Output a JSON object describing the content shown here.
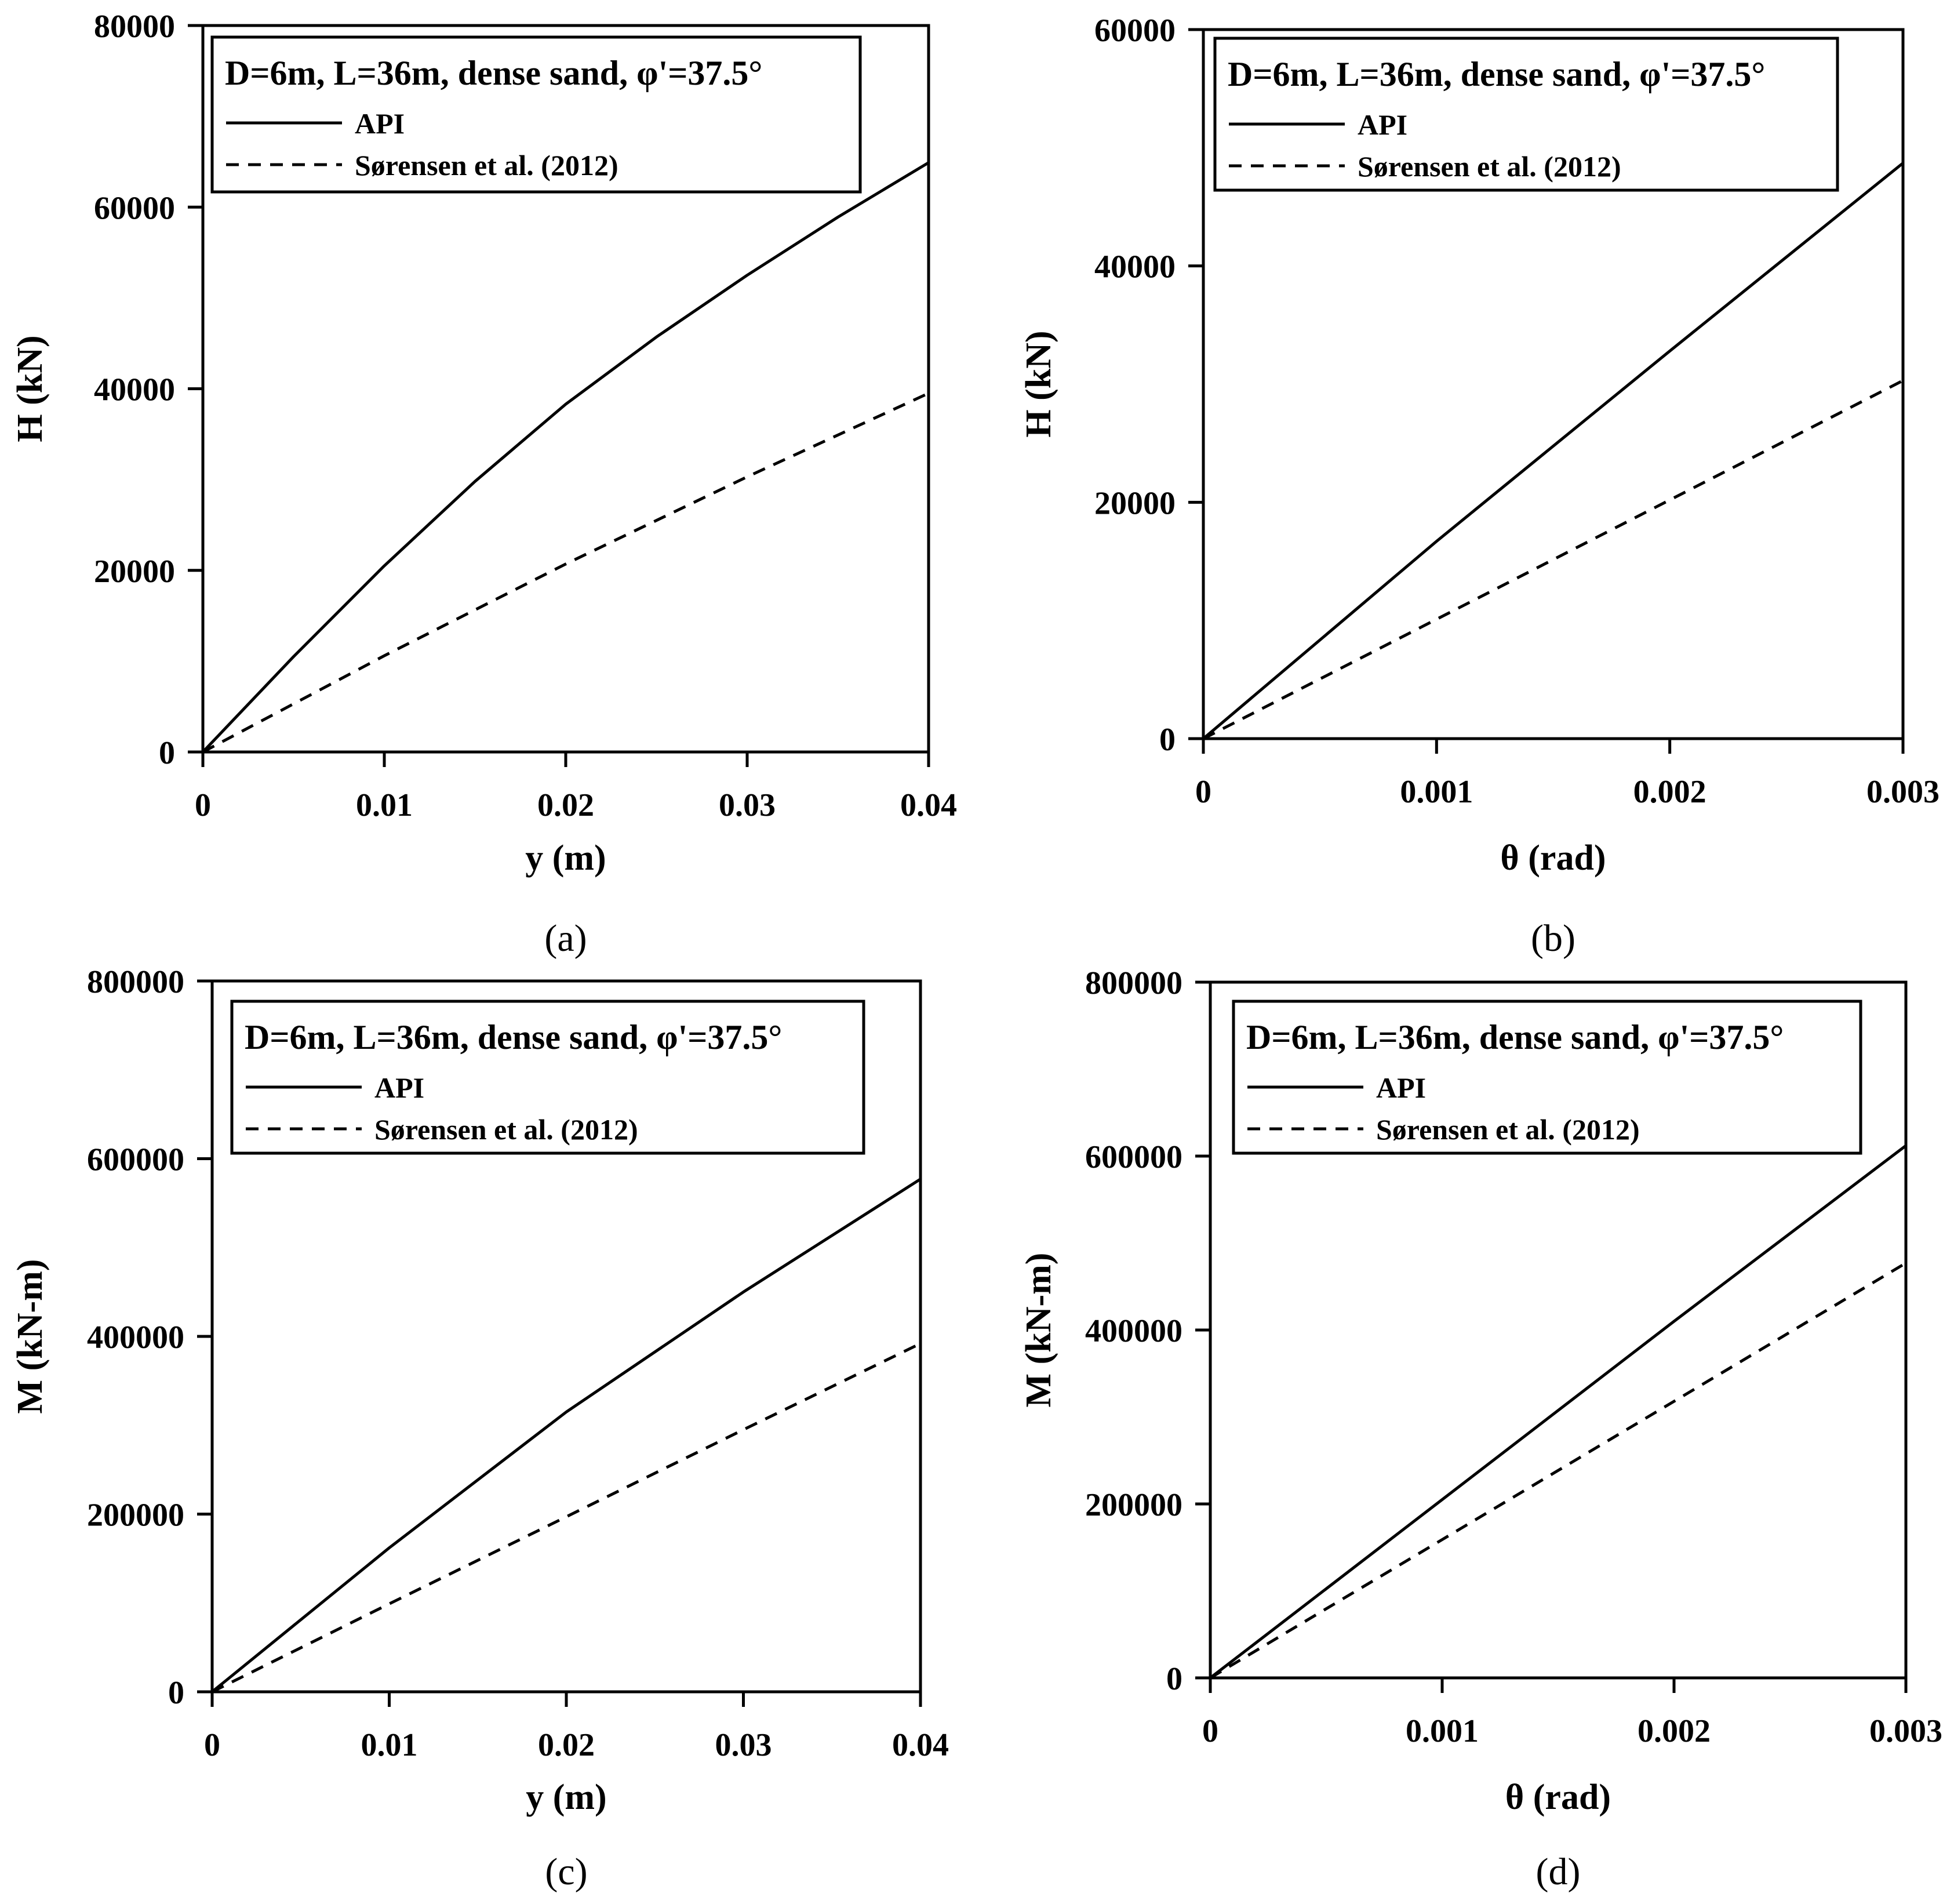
{
  "figure": {
    "panels": [
      "(a)",
      "(b)",
      "(c)",
      "(d)"
    ]
  },
  "chart_data": [
    {
      "id": "a",
      "type": "line",
      "panel_label": "(a)",
      "title": "D=6m, L=36m, dense sand, φ'=37.5°",
      "xlabel": "y (m)",
      "ylabel": "H (kN)",
      "xlim": [
        0,
        0.04
      ],
      "ylim": [
        0,
        80000
      ],
      "xticks": [
        0,
        0.01,
        0.02,
        0.03,
        0.04
      ],
      "xtick_labels": [
        "0",
        "0.01",
        "0.02",
        "0.03",
        "0.04"
      ],
      "yticks": [
        0,
        20000,
        40000,
        60000,
        80000
      ],
      "ytick_labels": [
        "0",
        "20000",
        "40000",
        "60000",
        "80000"
      ],
      "grid": false,
      "legend_position": "top-left",
      "series": [
        {
          "name": "API",
          "style": "solid",
          "x": [
            0,
            0.005,
            0.01,
            0.015,
            0.02,
            0.025,
            0.03,
            0.035,
            0.04
          ],
          "values": [
            0,
            10500,
            20500,
            29800,
            38300,
            45700,
            52500,
            58900,
            64900
          ]
        },
        {
          "name": "Sørensen et al. (2012)",
          "style": "dashed",
          "x": [
            0,
            0.01,
            0.02,
            0.03,
            0.04
          ],
          "values": [
            0,
            10600,
            20700,
            30300,
            39500
          ]
        }
      ]
    },
    {
      "id": "b",
      "type": "line",
      "panel_label": "(b)",
      "title": "D=6m, L=36m, dense sand, φ'=37.5°",
      "xlabel": "θ (rad)",
      "ylabel": "H (kN)",
      "xlim": [
        0,
        0.003
      ],
      "ylim": [
        0,
        60000
      ],
      "xticks": [
        0,
        0.001,
        0.002,
        0.003
      ],
      "xtick_labels": [
        "0",
        "0.001",
        "0.002",
        "0.003"
      ],
      "yticks": [
        0,
        20000,
        40000,
        60000
      ],
      "ytick_labels": [
        "0",
        "20000",
        "40000",
        "60000"
      ],
      "grid": false,
      "legend_position": "top-left",
      "series": [
        {
          "name": "API",
          "style": "solid",
          "x": [
            0,
            0.001,
            0.002,
            0.003
          ],
          "values": [
            0,
            16700,
            32800,
            48700
          ]
        },
        {
          "name": "Sørensen et al. (2012)",
          "style": "dashed",
          "x": [
            0,
            0.001,
            0.002,
            0.003
          ],
          "values": [
            0,
            10100,
            20200,
            30300
          ]
        }
      ]
    },
    {
      "id": "c",
      "type": "line",
      "panel_label": "(c)",
      "title": "D=6m, L=36m, dense sand, φ'=37.5°",
      "xlabel": "y (m)",
      "ylabel": "M (kN-m)",
      "xlim": [
        0,
        0.04
      ],
      "ylim": [
        0,
        800000
      ],
      "xticks": [
        0,
        0.01,
        0.02,
        0.03,
        0.04
      ],
      "xtick_labels": [
        "0",
        "0.01",
        "0.02",
        "0.03",
        "0.04"
      ],
      "yticks": [
        0,
        200000,
        400000,
        600000,
        800000
      ],
      "ytick_labels": [
        "0",
        "200000",
        "400000",
        "600000",
        "800000"
      ],
      "grid": false,
      "legend_position": "top-right",
      "series": [
        {
          "name": "API",
          "style": "solid",
          "x": [
            0,
            0.01,
            0.02,
            0.03,
            0.04
          ],
          "values": [
            0,
            162000,
            315000,
            450000,
            577000
          ]
        },
        {
          "name": "Sørensen et al. (2012)",
          "style": "dashed",
          "x": [
            0,
            0.01,
            0.02,
            0.03,
            0.04
          ],
          "values": [
            0,
            99000,
            197000,
            295000,
            392000
          ]
        }
      ]
    },
    {
      "id": "d",
      "type": "line",
      "panel_label": "(d)",
      "title": "D=6m, L=36m, dense sand, φ'=37.5°",
      "xlabel": "θ (rad)",
      "ylabel": "M (kN-m)",
      "xlim": [
        0,
        0.003
      ],
      "ylim": [
        0,
        800000
      ],
      "xticks": [
        0,
        0.001,
        0.002,
        0.003
      ],
      "xtick_labels": [
        "0",
        "0.001",
        "0.002",
        "0.003"
      ],
      "yticks": [
        0,
        200000,
        400000,
        600000,
        800000
      ],
      "ytick_labels": [
        "0",
        "200000",
        "400000",
        "600000",
        "800000"
      ],
      "grid": false,
      "legend_position": "top-right",
      "series": [
        {
          "name": "API",
          "style": "solid",
          "x": [
            0,
            0.001,
            0.002,
            0.003
          ],
          "values": [
            0,
            205000,
            410000,
            612000
          ]
        },
        {
          "name": "Sørensen et al. (2012)",
          "style": "dashed",
          "x": [
            0,
            0.001,
            0.002,
            0.003
          ],
          "values": [
            0,
            159000,
            318000,
            477000
          ]
        }
      ]
    }
  ]
}
